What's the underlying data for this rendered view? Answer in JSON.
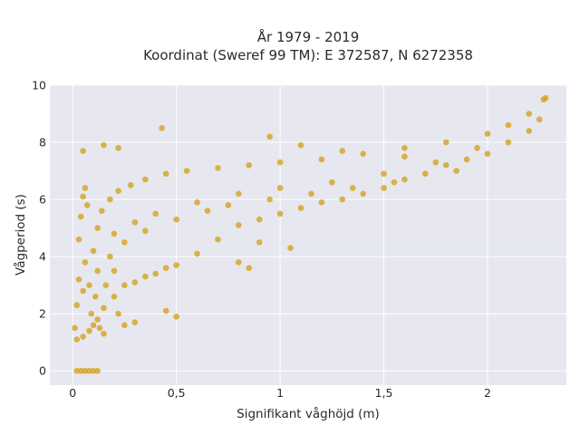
{
  "chart_data": {
    "type": "scatter",
    "title": "År 1979 - 2019",
    "subtitle": "Koordinat (Sweref 99 TM): E 372587, N 6272358",
    "xlabel": "Signifikant våghöjd (m)",
    "ylabel": "Vågperiod (s)",
    "xlim": [
      -0.11,
      2.38
    ],
    "ylim": [
      -0.5,
      10
    ],
    "x_ticks": [
      0,
      0.5,
      1,
      1.5,
      2
    ],
    "x_tick_labels": [
      "0",
      "0,5",
      "1",
      "1,5",
      "2"
    ],
    "y_ticks": [
      0,
      2,
      4,
      6,
      8,
      10
    ],
    "y_tick_labels": [
      "0",
      "2",
      "4",
      "6",
      "8",
      "10"
    ],
    "grid": true,
    "legend": "none",
    "colors": {
      "marker": "#d4a21e",
      "plot_bg": "#e6e7ef",
      "grid": "#ffffff"
    },
    "series": [
      {
        "points": [
          [
            0.02,
            0
          ],
          [
            0.04,
            0
          ],
          [
            0.06,
            0
          ],
          [
            0.08,
            0
          ],
          [
            0.1,
            0
          ],
          [
            0.12,
            0
          ],
          [
            0.01,
            1.5
          ],
          [
            0.02,
            2.3
          ],
          [
            0.03,
            3.2
          ],
          [
            0.03,
            4.6
          ],
          [
            0.04,
            5.4
          ],
          [
            0.05,
            6.1
          ],
          [
            0.06,
            6.4
          ],
          [
            0.07,
            5.8
          ],
          [
            0.02,
            1.1
          ],
          [
            0.05,
            1.2
          ],
          [
            0.08,
            1.4
          ],
          [
            0.1,
            1.6
          ],
          [
            0.12,
            1.8
          ],
          [
            0.15,
            2.2
          ],
          [
            0.2,
            2.6
          ],
          [
            0.25,
            3.0
          ],
          [
            0.3,
            3.1
          ],
          [
            0.35,
            3.3
          ],
          [
            0.4,
            3.4
          ],
          [
            0.45,
            3.6
          ],
          [
            0.5,
            3.7
          ],
          [
            0.6,
            4.1
          ],
          [
            0.7,
            4.6
          ],
          [
            0.8,
            5.1
          ],
          [
            0.9,
            5.3
          ],
          [
            1.0,
            5.5
          ],
          [
            1.1,
            5.7
          ],
          [
            1.2,
            5.9
          ],
          [
            1.3,
            6.0
          ],
          [
            1.4,
            6.2
          ],
          [
            1.5,
            6.4
          ],
          [
            1.6,
            6.7
          ],
          [
            1.7,
            6.9
          ],
          [
            1.8,
            7.2
          ],
          [
            1.9,
            7.4
          ],
          [
            2.0,
            7.6
          ],
          [
            2.1,
            8.0
          ],
          [
            2.2,
            8.4
          ],
          [
            2.25,
            8.8
          ],
          [
            0.08,
            3.0
          ],
          [
            0.1,
            4.2
          ],
          [
            0.12,
            5.0
          ],
          [
            0.14,
            5.6
          ],
          [
            0.18,
            6.0
          ],
          [
            0.22,
            6.3
          ],
          [
            0.28,
            6.5
          ],
          [
            0.35,
            6.7
          ],
          [
            0.45,
            6.9
          ],
          [
            0.55,
            7.0
          ],
          [
            0.7,
            7.1
          ],
          [
            0.85,
            7.2
          ],
          [
            1.0,
            7.3
          ],
          [
            1.2,
            7.4
          ],
          [
            1.4,
            7.6
          ],
          [
            1.6,
            7.8
          ],
          [
            1.8,
            8.0
          ],
          [
            2.0,
            8.3
          ],
          [
            2.1,
            8.6
          ],
          [
            2.2,
            9.0
          ],
          [
            2.27,
            9.5
          ],
          [
            2.28,
            9.55
          ],
          [
            0.05,
            7.7
          ],
          [
            0.15,
            7.9
          ],
          [
            0.22,
            7.8
          ],
          [
            0.43,
            8.5
          ],
          [
            0.95,
            8.2
          ],
          [
            1.1,
            7.9
          ],
          [
            1.3,
            7.7
          ],
          [
            1.6,
            7.5
          ],
          [
            0.5,
            1.9
          ],
          [
            0.45,
            2.1
          ],
          [
            0.3,
            1.7
          ],
          [
            0.25,
            1.6
          ],
          [
            0.8,
            3.8
          ],
          [
            0.85,
            3.6
          ],
          [
            1.05,
            4.3
          ],
          [
            0.9,
            4.5
          ],
          [
            0.2,
            4.8
          ],
          [
            0.3,
            5.2
          ],
          [
            0.4,
            5.5
          ],
          [
            0.6,
            5.9
          ],
          [
            0.8,
            6.2
          ],
          [
            1.0,
            6.4
          ],
          [
            1.25,
            6.6
          ],
          [
            1.5,
            6.9
          ],
          [
            1.75,
            7.3
          ],
          [
            1.95,
            7.8
          ],
          [
            0.12,
            3.5
          ],
          [
            0.18,
            4.0
          ],
          [
            0.25,
            4.5
          ],
          [
            0.35,
            4.9
          ],
          [
            0.5,
            5.3
          ],
          [
            0.65,
            5.6
          ],
          [
            0.75,
            5.8
          ],
          [
            0.95,
            6.0
          ],
          [
            1.15,
            6.2
          ],
          [
            1.35,
            6.4
          ],
          [
            1.55,
            6.6
          ],
          [
            1.85,
            7.0
          ],
          [
            0.15,
            1.3
          ],
          [
            0.05,
            2.8
          ],
          [
            0.06,
            3.8
          ],
          [
            0.09,
            2.0
          ],
          [
            0.11,
            2.6
          ],
          [
            0.13,
            1.5
          ],
          [
            0.16,
            3.0
          ],
          [
            0.2,
            3.5
          ],
          [
            0.22,
            2.0
          ]
        ]
      }
    ]
  }
}
